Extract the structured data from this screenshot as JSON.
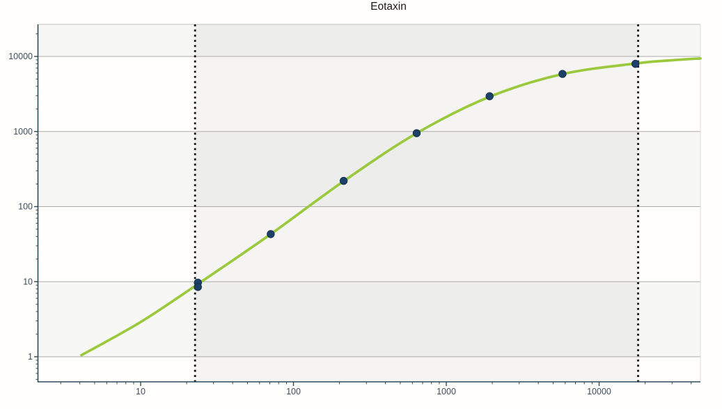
{
  "header": {
    "title": "Eotaxin"
  },
  "style": {
    "page_background": "#fffefb",
    "plot_background": "#fffefc",
    "band_fill": "#f7f7f6",
    "range_overlay_fill": "rgba(0,0,0,0.04)",
    "gridline_color": "#ababab",
    "plot_top_border_color": "#c2c2c2",
    "plot_right_border_color": "#dcdcdc",
    "axis_color": "#2c4b5a",
    "tick_label_color": "#3c4c5e",
    "title_color": "#1a1a1a",
    "dotted_line_color": "#121212",
    "curve_color": "#9bc93d",
    "point_fill": "#1d4066",
    "point_stroke": "#14304e"
  },
  "chart_data": {
    "type": "line",
    "title": "Eotaxin",
    "xlabel": "",
    "ylabel": "",
    "x_scale": "log",
    "y_scale": "log",
    "xlim": [
      2.14,
      46000
    ],
    "ylim": [
      0.46,
      26700
    ],
    "x_ticks": [
      10,
      100,
      1000,
      10000
    ],
    "y_ticks": [
      1,
      10,
      100,
      1000,
      10000
    ],
    "grid": "horizontal-major-only",
    "legend": "none",
    "shaded_decade_bands": [
      [
        1,
        10
      ],
      [
        100,
        1000
      ],
      [
        10000,
        100000
      ]
    ],
    "quantifiable_range": {
      "from": 22.7,
      "to": 18000,
      "style": "vertical-dotted-lines-with-gray-band"
    },
    "series": [
      {
        "name": "standard-curve-fit",
        "type": "line",
        "color": "#9bc93d",
        "points": [
          [
            4.1,
            1.05
          ],
          [
            10,
            2.9
          ],
          [
            23.7,
            9.3
          ],
          [
            71,
            43
          ],
          [
            213,
            218
          ],
          [
            640,
            950
          ],
          [
            1920,
            2900
          ],
          [
            5760,
            5820
          ],
          [
            17280,
            8050
          ],
          [
            30000,
            8900
          ],
          [
            46000,
            9400
          ]
        ]
      },
      {
        "name": "standard-points-measured",
        "type": "scatter",
        "color": "#1d4066",
        "points": [
          [
            23.7,
            9.7
          ],
          [
            23.7,
            8.5
          ],
          [
            71,
            43
          ],
          [
            213,
            220
          ],
          [
            640,
            950
          ],
          [
            1920,
            2950
          ],
          [
            5760,
            5850
          ],
          [
            17280,
            7970
          ]
        ]
      }
    ]
  }
}
